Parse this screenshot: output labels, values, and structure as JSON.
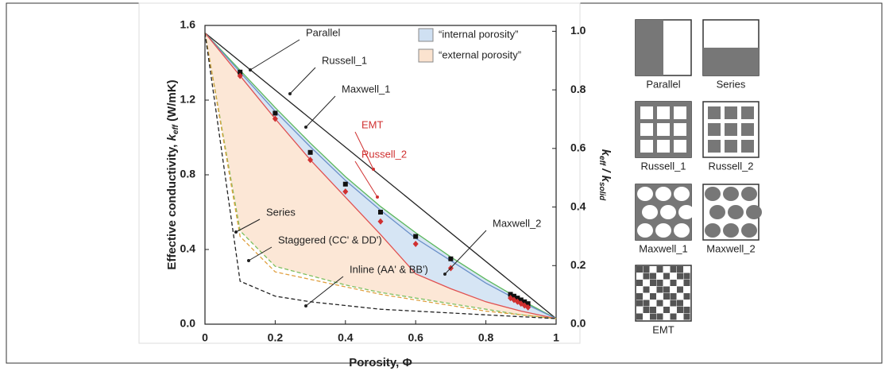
{
  "chart_data": {
    "type": "line",
    "xlabel": "Porosity, Φ",
    "ylabel": [
      "Effective conductivity, ",
      "k",
      "eff",
      " (W/mK)"
    ],
    "y2label": [
      "k",
      "eff",
      " / k",
      "solid"
    ],
    "xlim": [
      0,
      1
    ],
    "xticks": [
      0,
      0.2,
      0.4,
      0.6,
      0.8,
      1
    ],
    "ylim": [
      0,
      1.6
    ],
    "yticks": [
      {
        "value": 0,
        "label": "0.0"
      },
      0.4,
      0.8,
      1.2,
      1.6
    ],
    "y2lim": [
      0,
      1.02
    ],
    "y2ticks": [
      {
        "value": 0,
        "label": "0.0"
      },
      0.2,
      0.4,
      0.6,
      0.8,
      {
        "value": 1,
        "label": "1.0"
      }
    ],
    "series": [
      {
        "name": "Parallel",
        "color": "#222222",
        "x": [
          0,
          1
        ],
        "values": [
          1.56,
          0.03
        ]
      },
      {
        "name": "Russell_1",
        "color": "#5cb85c",
        "x": [
          0,
          0.1,
          0.2,
          0.3,
          0.4,
          0.5,
          0.6,
          0.7,
          0.8,
          0.9,
          1
        ],
        "values": [
          1.56,
          1.36,
          1.16,
          0.97,
          0.79,
          0.63,
          0.49,
          0.36,
          0.24,
          0.13,
          0.03
        ]
      },
      {
        "name": "Maxwell_1",
        "color": "#6a8fc8",
        "x": [
          0,
          0.1,
          0.2,
          0.3,
          0.4,
          0.5,
          0.6,
          0.7,
          0.8,
          0.9,
          1
        ],
        "values": [
          1.56,
          1.35,
          1.14,
          0.95,
          0.77,
          0.61,
          0.46,
          0.34,
          0.22,
          0.12,
          0.03
        ]
      },
      {
        "name": "EMT",
        "color": "#e05050",
        "x": [
          0,
          0.1,
          0.2,
          0.3,
          0.4,
          0.5,
          0.6,
          0.7,
          0.8,
          0.9,
          1
        ],
        "values": [
          1.56,
          1.33,
          1.1,
          0.88,
          0.68,
          0.48,
          0.27,
          0.19,
          0.12,
          0.07,
          0.03
        ]
      },
      {
        "name": "Russell_2",
        "color": "#7fbf5f",
        "dashed": true,
        "x": [
          0,
          0.1,
          0.2,
          0.3,
          0.4,
          0.5,
          0.6,
          0.7,
          0.8,
          0.9,
          1
        ],
        "values": [
          1.56,
          0.5,
          0.31,
          0.26,
          0.21,
          0.17,
          0.14,
          0.11,
          0.08,
          0.05,
          0.03
        ]
      },
      {
        "name": "Maxwell_2",
        "color": "#e0a040",
        "dashed": true,
        "x": [
          0,
          0.1,
          0.2,
          0.3,
          0.4,
          0.5,
          0.6,
          0.7,
          0.8,
          0.9,
          1
        ],
        "values": [
          1.56,
          0.47,
          0.28,
          0.24,
          0.2,
          0.16,
          0.13,
          0.1,
          0.07,
          0.05,
          0.03
        ]
      },
      {
        "name": "Series",
        "color": "#222222",
        "dashed": true,
        "x": [
          0,
          0.1,
          0.2,
          0.3,
          0.4,
          0.5,
          0.6,
          0.7,
          0.8,
          0.9,
          1
        ],
        "values": [
          1.56,
          0.23,
          0.15,
          0.12,
          0.1,
          0.08,
          0.07,
          0.06,
          0.05,
          0.04,
          0.03
        ]
      },
      {
        "name": "Staggered (CC' & DD')",
        "color": "#111111",
        "marker": "square",
        "x": [
          0.1,
          0.2,
          0.3,
          0.4,
          0.5,
          0.6,
          0.7,
          0.87,
          0.88,
          0.89,
          0.9,
          0.91,
          0.92
        ],
        "values": [
          1.35,
          1.13,
          0.92,
          0.75,
          0.6,
          0.47,
          0.35,
          0.16,
          0.15,
          0.14,
          0.13,
          0.12,
          0.11
        ]
      },
      {
        "name": "Inline (AA' & BB')",
        "color": "#d03030",
        "marker": "diamond",
        "x": [
          0.1,
          0.2,
          0.3,
          0.4,
          0.5,
          0.6,
          0.7,
          0.87,
          0.88,
          0.89,
          0.9,
          0.91,
          0.92
        ],
        "values": [
          1.33,
          1.1,
          0.88,
          0.71,
          0.55,
          0.43,
          0.3,
          0.14,
          0.13,
          0.12,
          0.11,
          0.1,
          0.09
        ]
      }
    ],
    "regions": [
      {
        "name": "“internal porosity”",
        "color": "#cfe0f2"
      },
      {
        "name": "“external porosity”",
        "color": "#fbe3cf"
      }
    ],
    "schematics": [
      "Parallel",
      "Series",
      "Russell_1",
      "Russell_2",
      "Maxwell_1",
      "Maxwell_2",
      "EMT"
    ]
  }
}
